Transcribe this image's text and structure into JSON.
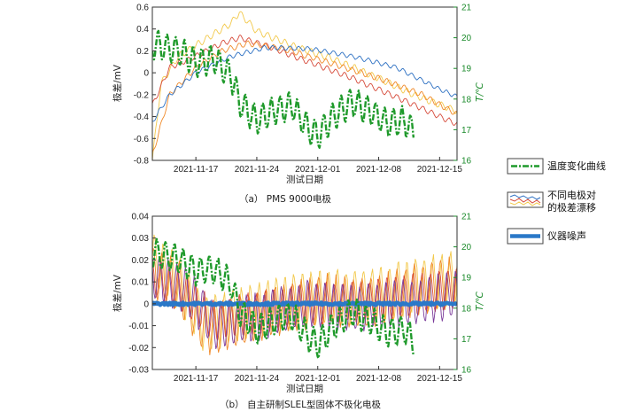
{
  "colors": {
    "temperature": "#1f9a2b",
    "electrode_blue": "#2b6fc2",
    "electrode_orange": "#f08a2a",
    "electrode_yellow": "#f2c94c",
    "electrode_red": "#d64a3a",
    "electrode_purple": "#7a3a9a",
    "noise": "#2a78c8",
    "right_axis": "#1a8a2a"
  },
  "legend": {
    "temperature": "温度变化曲线",
    "electrodes_line1": "不同电极对",
    "electrodes_line2": "的极差漂移",
    "noise": "仪器噪声"
  },
  "chart_data": [
    {
      "type": "line",
      "caption": "（a） PMS 9000电极",
      "xlabel": "测试日期",
      "ylabel": "极差/mV",
      "y2label": "T/℃",
      "xlim": [
        "2021-11-12",
        "2021-12-17"
      ],
      "x_ticks": [
        "2021-11-17",
        "2021-11-24",
        "2021-12-01",
        "2021-12-08",
        "2021-12-15"
      ],
      "ylim": [
        -0.8,
        0.6
      ],
      "y_ticks": [
        "-0.8",
        "-0.6",
        "-0.4",
        "-0.2",
        "0",
        "0.2",
        "0.4",
        "0.6"
      ],
      "y2lim": [
        16,
        21
      ],
      "y2_ticks": [
        "16",
        "17",
        "18",
        "19",
        "20",
        "21"
      ],
      "series": [
        {
          "axis": "left",
          "color": "#f2c94c",
          "style": "solid",
          "daily_oscillation": 0.03,
          "points": [
            [
              "2021-11-12",
              -0.8
            ],
            [
              "2021-11-13",
              -0.1
            ],
            [
              "2021-11-15",
              0.15
            ],
            [
              "2021-11-18",
              0.3
            ],
            [
              "2021-11-21",
              0.45
            ],
            [
              "2021-11-22",
              0.55
            ],
            [
              "2021-11-24",
              0.38
            ],
            [
              "2021-11-28",
              0.25
            ],
            [
              "2021-12-03",
              0.12
            ],
            [
              "2021-12-08",
              -0.05
            ],
            [
              "2021-12-12",
              -0.2
            ],
            [
              "2021-12-17",
              -0.35
            ]
          ]
        },
        {
          "axis": "left",
          "color": "#d64a3a",
          "style": "solid",
          "daily_oscillation": 0.025,
          "points": [
            [
              "2021-11-12",
              -0.3
            ],
            [
              "2021-11-14",
              0.05
            ],
            [
              "2021-11-17",
              0.15
            ],
            [
              "2021-11-20",
              0.27
            ],
            [
              "2021-11-22",
              0.32
            ],
            [
              "2021-11-25",
              0.25
            ],
            [
              "2021-11-30",
              0.1
            ],
            [
              "2021-12-05",
              -0.05
            ],
            [
              "2021-12-10",
              -0.22
            ],
            [
              "2021-12-17",
              -0.47
            ]
          ]
        },
        {
          "axis": "left",
          "color": "#f08a2a",
          "style": "solid",
          "daily_oscillation": 0.025,
          "points": [
            [
              "2021-11-12",
              -0.75
            ],
            [
              "2021-11-14",
              -0.2
            ],
            [
              "2021-11-17",
              0.05
            ],
            [
              "2021-11-20",
              0.2
            ],
            [
              "2021-11-23",
              0.27
            ],
            [
              "2021-11-27",
              0.22
            ],
            [
              "2021-12-02",
              0.1
            ],
            [
              "2021-12-08",
              -0.05
            ],
            [
              "2021-12-13",
              -0.2
            ],
            [
              "2021-12-17",
              -0.38
            ]
          ]
        },
        {
          "axis": "left",
          "color": "#2b6fc2",
          "style": "solid",
          "daily_oscillation": 0.02,
          "points": [
            [
              "2021-11-12",
              -0.45
            ],
            [
              "2021-11-14",
              -0.2
            ],
            [
              "2021-11-17",
              0.0
            ],
            [
              "2021-11-21",
              0.15
            ],
            [
              "2021-11-25",
              0.23
            ],
            [
              "2021-11-30",
              0.22
            ],
            [
              "2021-12-05",
              0.15
            ],
            [
              "2021-12-10",
              0.05
            ],
            [
              "2021-12-15",
              -0.15
            ],
            [
              "2021-12-17",
              -0.22
            ]
          ]
        },
        {
          "axis": "right",
          "color": "#1f9a2b",
          "style": "dashdot",
          "name": "温度变化曲线",
          "daily_oscillation": 0.45,
          "points": [
            [
              "2021-11-12",
              19.8
            ],
            [
              "2021-11-15",
              19.6
            ],
            [
              "2021-11-17",
              19.2
            ],
            [
              "2021-11-19",
              19.3
            ],
            [
              "2021-11-21",
              18.8
            ],
            [
              "2021-11-22",
              17.9
            ],
            [
              "2021-11-24",
              17.3
            ],
            [
              "2021-11-26",
              17.6
            ],
            [
              "2021-11-28",
              17.8
            ],
            [
              "2021-11-30",
              17.0
            ],
            [
              "2021-12-01",
              16.8
            ],
            [
              "2021-12-03",
              17.5
            ],
            [
              "2021-12-05",
              17.9
            ],
            [
              "2021-12-07",
              17.6
            ],
            [
              "2021-12-09",
              17.2
            ],
            [
              "2021-12-11",
              17.3
            ],
            [
              "2021-12-12",
              16.9
            ]
          ]
        }
      ]
    },
    {
      "type": "line",
      "caption": "（b） 自主研制SLEL型固体不极化电极",
      "xlabel": "测试日期",
      "ylabel": "极差/mV",
      "y2label": "T/℃",
      "xlim": [
        "2021-11-12",
        "2021-12-17"
      ],
      "x_ticks": [
        "2021-11-17",
        "2021-11-24",
        "2021-12-01",
        "2021-12-08",
        "2021-12-15"
      ],
      "ylim": [
        -0.03,
        0.04
      ],
      "y_ticks": [
        "-0.03",
        "-0.02",
        "-0.01",
        "0",
        "0.01",
        "0.02",
        "0.03",
        "0.04"
      ],
      "y2lim": [
        16,
        21
      ],
      "y2_ticks": [
        "16",
        "17",
        "18",
        "19",
        "20",
        "21"
      ],
      "series": [
        {
          "axis": "left",
          "color": "#f2c94c",
          "style": "solid",
          "daily_oscillation": 0.012,
          "points": [
            [
              "2021-11-12",
              0.02
            ],
            [
              "2021-11-15",
              0.01
            ],
            [
              "2021-11-18",
              -0.01
            ],
            [
              "2021-11-22",
              -0.005
            ],
            [
              "2021-11-27",
              0.0
            ],
            [
              "2021-12-02",
              0.003
            ],
            [
              "2021-12-07",
              0.003
            ],
            [
              "2021-12-12",
              0.008
            ],
            [
              "2021-12-17",
              0.012
            ]
          ]
        },
        {
          "axis": "left",
          "color": "#f08a2a",
          "style": "solid",
          "daily_oscillation": 0.011,
          "points": [
            [
              "2021-11-12",
              0.015
            ],
            [
              "2021-11-15",
              0.008
            ],
            [
              "2021-11-18",
              -0.012
            ],
            [
              "2021-11-22",
              -0.008
            ],
            [
              "2021-11-27",
              -0.002
            ],
            [
              "2021-12-02",
              0.002
            ],
            [
              "2021-12-07",
              0.0
            ],
            [
              "2021-12-12",
              0.006
            ],
            [
              "2021-12-17",
              0.01
            ]
          ]
        },
        {
          "axis": "left",
          "color": "#d64a3a",
          "style": "solid",
          "daily_oscillation": 0.009,
          "points": [
            [
              "2021-11-12",
              0.012
            ],
            [
              "2021-11-16",
              0.004
            ],
            [
              "2021-11-19",
              -0.008
            ],
            [
              "2021-11-24",
              -0.004
            ],
            [
              "2021-11-30",
              0.0
            ],
            [
              "2021-12-05",
              0.001
            ],
            [
              "2021-12-10",
              0.003
            ],
            [
              "2021-12-17",
              0.007
            ]
          ]
        },
        {
          "axis": "left",
          "color": "#7a3a9a",
          "style": "solid",
          "daily_oscillation": 0.01,
          "points": [
            [
              "2021-11-12",
              0.013
            ],
            [
              "2021-11-16",
              0.006
            ],
            [
              "2021-11-19",
              -0.01
            ],
            [
              "2021-11-24",
              -0.006
            ],
            [
              "2021-11-30",
              0.0
            ],
            [
              "2021-12-05",
              -0.002
            ],
            [
              "2021-12-10",
              0.0
            ],
            [
              "2021-12-17",
              0.004
            ]
          ]
        },
        {
          "axis": "left",
          "color": "#2a78c8",
          "style": "noise",
          "name": "仪器噪声",
          "daily_oscillation": 0.0,
          "points": [
            [
              "2021-11-12",
              0.0
            ],
            [
              "2021-12-17",
              0.0
            ]
          ]
        },
        {
          "axis": "right",
          "color": "#1f9a2b",
          "style": "dashdot",
          "name": "温度变化曲线",
          "daily_oscillation": 0.45,
          "points": [
            [
              "2021-11-12",
              19.8
            ],
            [
              "2021-11-15",
              19.6
            ],
            [
              "2021-11-17",
              19.2
            ],
            [
              "2021-11-19",
              19.3
            ],
            [
              "2021-11-21",
              18.8
            ],
            [
              "2021-11-22",
              17.9
            ],
            [
              "2021-11-24",
              17.3
            ],
            [
              "2021-11-26",
              17.6
            ],
            [
              "2021-11-28",
              17.8
            ],
            [
              "2021-11-30",
              17.0
            ],
            [
              "2021-12-01",
              16.8
            ],
            [
              "2021-12-03",
              17.5
            ],
            [
              "2021-12-05",
              17.9
            ],
            [
              "2021-12-07",
              17.6
            ],
            [
              "2021-12-09",
              17.2
            ],
            [
              "2021-12-11",
              17.3
            ],
            [
              "2021-12-12",
              16.9
            ]
          ]
        }
      ]
    }
  ]
}
